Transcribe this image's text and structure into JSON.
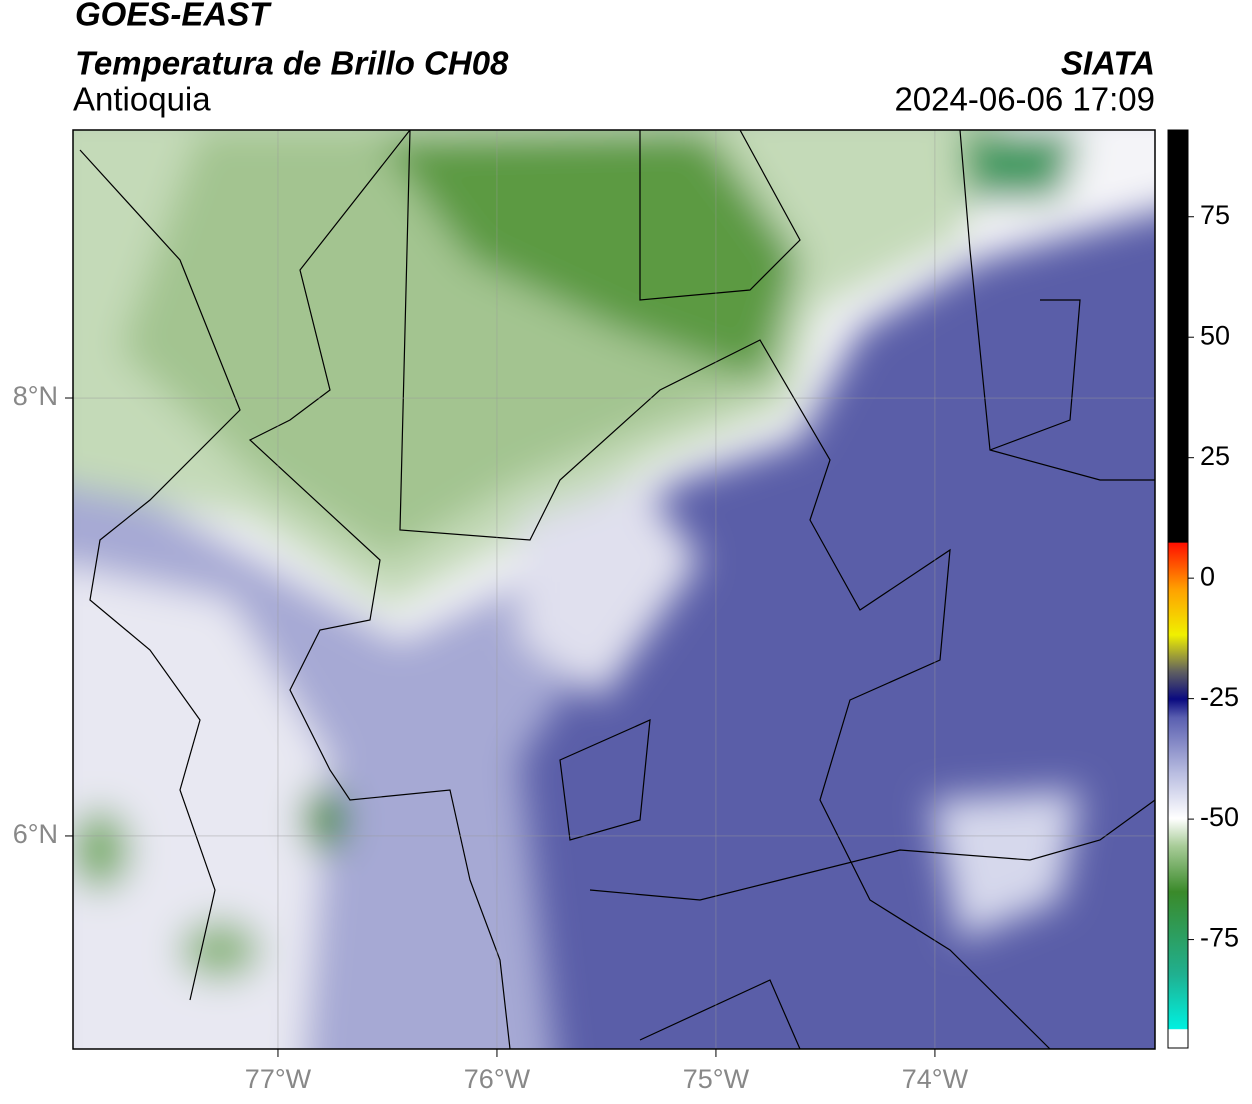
{
  "header": {
    "title": "GOES-EAST",
    "subtitle": "Temperatura de Brillo CH08",
    "region": "Antioquia",
    "source": "SIATA",
    "datetime": "2024-06-06 17:09"
  },
  "map": {
    "xlim": [
      -77.936,
      -72.995
    ],
    "ylim": [
      5.027,
      9.224
    ],
    "xticks": [
      {
        "value": -77,
        "label": "77°W"
      },
      {
        "value": -76,
        "label": "76°W"
      },
      {
        "value": -75,
        "label": "75°W"
      },
      {
        "value": -74,
        "label": "74°W"
      }
    ],
    "yticks": [
      {
        "value": 6,
        "label": "6°N"
      },
      {
        "value": 8,
        "label": "8°N"
      }
    ],
    "grid": true
  },
  "colorbar": {
    "lim": [
      -97.5,
      93
    ],
    "ticks": [
      -75,
      -50,
      -25,
      0,
      25,
      50,
      75
    ]
  }
}
